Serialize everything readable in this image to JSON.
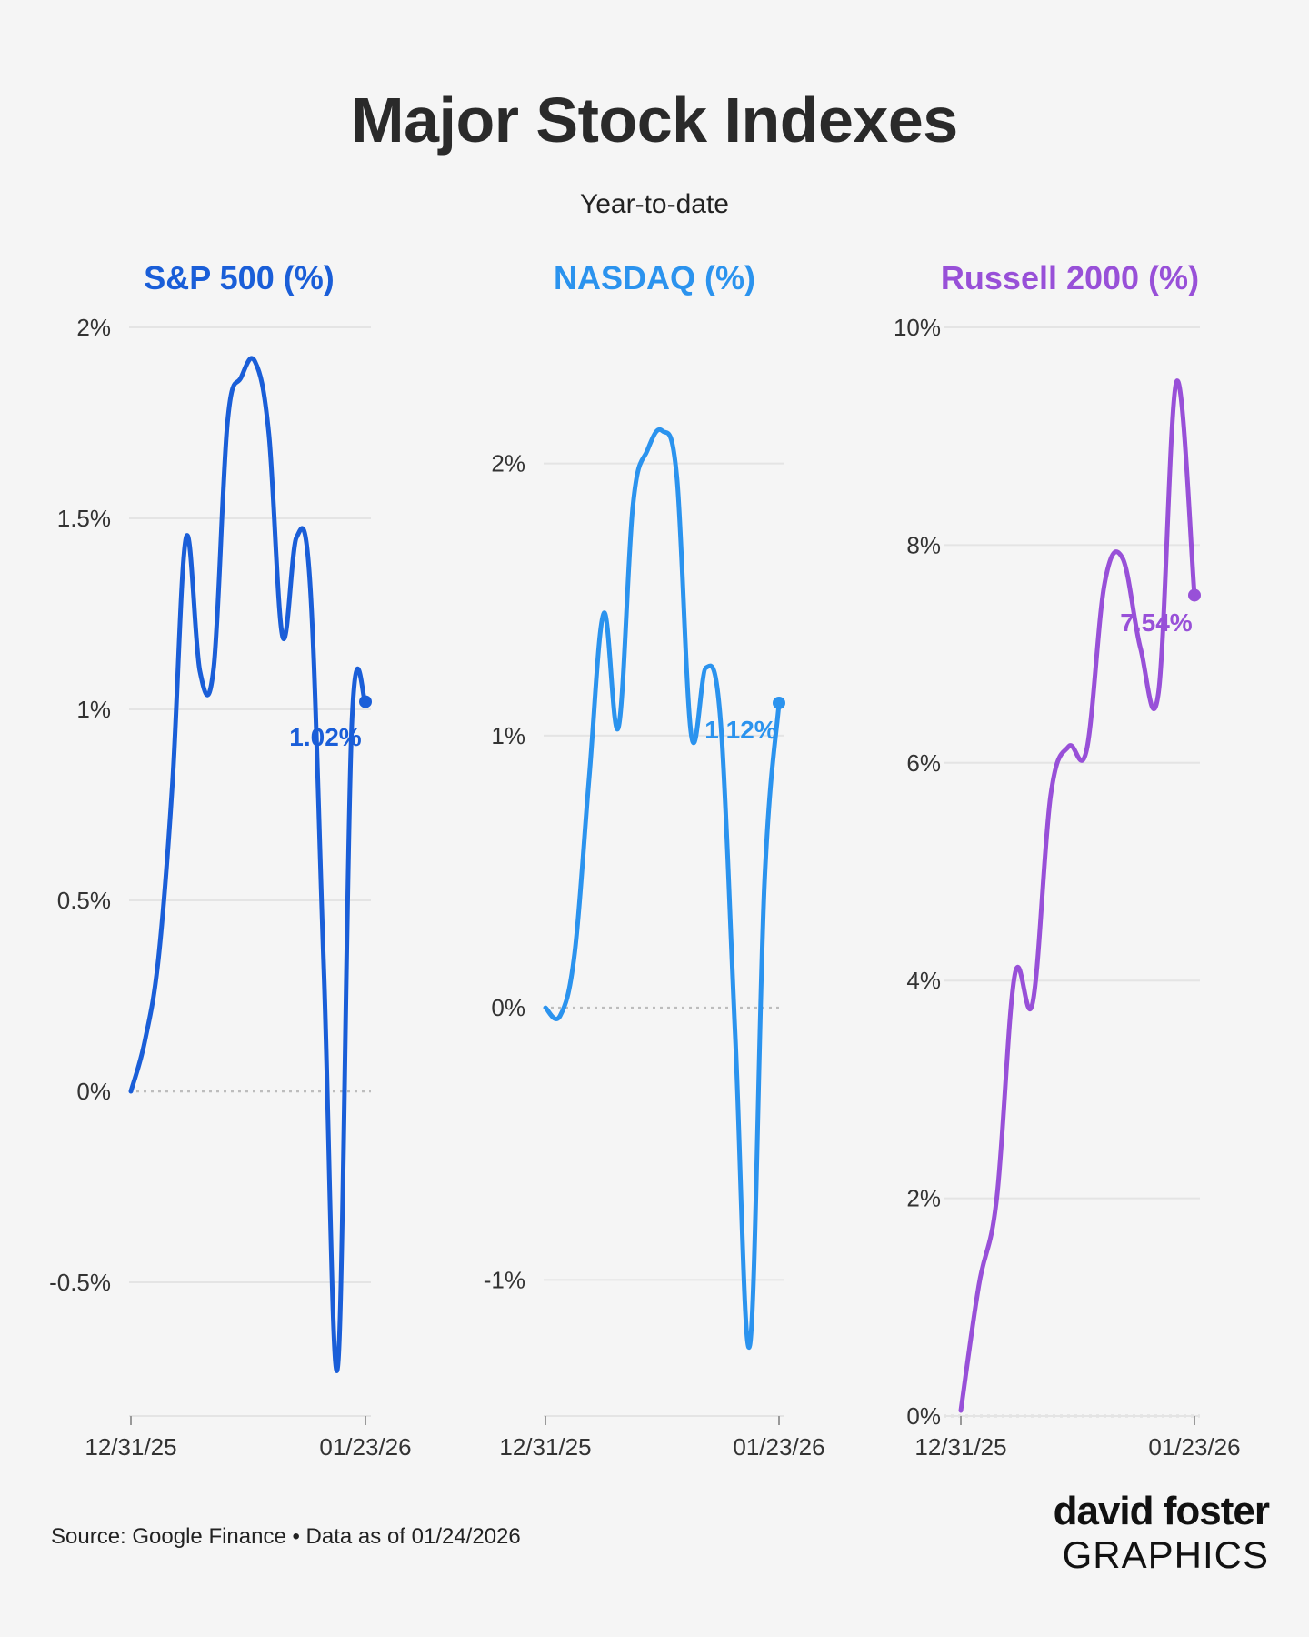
{
  "title": "Major Stock Indexes",
  "subtitle": "Year-to-date",
  "source": "Source: Google Finance • Data as of 01/24/2026",
  "brand": {
    "line1": "david foster",
    "line2": "GRAPHICS"
  },
  "chart_data": [
    {
      "type": "line",
      "title": "S&P 500 (%)",
      "color": "#1a5ed8",
      "x_tick_labels": [
        "12/31/25",
        "01/23/26"
      ],
      "ylim": [
        -0.85,
        2.0
      ],
      "y_ticks": [
        -0.5,
        0,
        0.5,
        1,
        1.5,
        2
      ],
      "y_tick_labels": [
        "-0.5%",
        "0%",
        "0.5%",
        "1%",
        "1.5%",
        "2%"
      ],
      "zero_line": true,
      "end_label": "1.02%",
      "series": [
        {
          "values": [
            0.0,
            0.13,
            0.35,
            0.8,
            1.45,
            1.1,
            1.11,
            1.75,
            1.87,
            1.91,
            1.72,
            1.19,
            1.45,
            1.32,
            0.3,
            -0.72,
            0.95,
            1.02
          ]
        }
      ]
    },
    {
      "type": "line",
      "title": "NASDAQ (%)",
      "color": "#2b93ee",
      "x_tick_labels": [
        "12/31/25",
        "01/23/26"
      ],
      "ylim": [
        -1.5,
        2.5
      ],
      "y_ticks": [
        -1,
        0,
        1,
        2
      ],
      "y_tick_labels": [
        "-1%",
        "0%",
        "1%",
        "2%"
      ],
      "zero_line": true,
      "end_label": "1.12%",
      "series": [
        {
          "values": [
            0.0,
            -0.03,
            0.2,
            0.85,
            1.45,
            1.03,
            1.85,
            2.05,
            2.12,
            1.95,
            1.0,
            1.25,
            1.05,
            -0.1,
            -1.24,
            0.45,
            1.12
          ]
        }
      ]
    },
    {
      "type": "line",
      "title": "Russell 2000 (%)",
      "color": "#9850d8",
      "x_tick_labels": [
        "12/31/25",
        "01/23/26"
      ],
      "ylim": [
        0,
        10
      ],
      "y_ticks": [
        0,
        2,
        4,
        6,
        8,
        10
      ],
      "y_tick_labels": [
        "0%",
        "2%",
        "4%",
        "6%",
        "8%",
        "10%"
      ],
      "zero_line": true,
      "end_label": "7.54%",
      "series": [
        {
          "values": [
            0.05,
            1.2,
            2.0,
            4.05,
            3.8,
            5.7,
            6.15,
            6.12,
            7.65,
            7.88,
            7.05,
            6.65,
            9.5,
            7.54
          ]
        }
      ]
    }
  ]
}
